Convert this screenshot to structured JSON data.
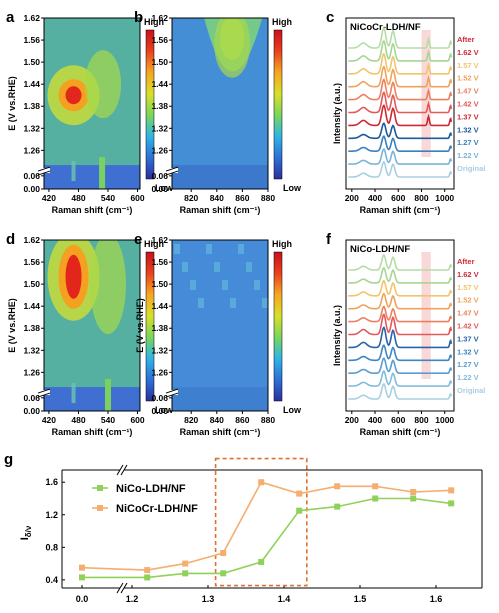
{
  "colorbar": {
    "high": "High",
    "low": "Low",
    "stops": [
      "#2b2f9e",
      "#2f6fd6",
      "#2fb5e8",
      "#7ad65a",
      "#d8e02a",
      "#f5a623",
      "#e8421e",
      "#c8101e"
    ]
  },
  "panels": {
    "a": {
      "letter": "a",
      "ylabel": "E (V vs.RHE)",
      "xlabel": "Raman shift (cm⁻¹)",
      "xticks": [
        "420",
        "480",
        "540",
        "600"
      ],
      "yticks": [
        "1.62",
        "1.56",
        "1.50",
        "1.44",
        "1.38",
        "1.32",
        "1.26",
        "0.06",
        "0.00"
      ]
    },
    "b": {
      "letter": "b",
      "ylabel": "",
      "xlabel": "Raman shift (cm⁻¹)",
      "xticks": [
        "820",
        "840",
        "860",
        "880"
      ],
      "yticks": [
        "1.62",
        "1.56",
        "1.50",
        "1.44",
        "1.38",
        "1.32",
        "1.26",
        "0.06",
        "0.00"
      ]
    },
    "c": {
      "letter": "c",
      "title": "NiCoCr-LDH/NF",
      "ylabel": "Intensity (a.u.)",
      "xlabel": "Raman shift (cm⁻¹)",
      "xticks": [
        "200",
        "400",
        "600",
        "800",
        "1000"
      ],
      "labels": [
        "After",
        "1.62 V",
        "1.57 V",
        "1.52 V",
        "1.47 V",
        "1.42 V",
        "1.37 V",
        "1.32 V",
        "1.27 V",
        "1.22 V",
        "Original"
      ]
    },
    "d": {
      "letter": "d",
      "ylabel": "E (V vs.RHE)",
      "xlabel": "Raman shift (cm⁻¹)",
      "xticks": [
        "420",
        "480",
        "540",
        "600"
      ],
      "yticks": [
        "1.62",
        "1.56",
        "1.50",
        "1.44",
        "1.38",
        "1.32",
        "1.26",
        "0.06",
        "0.00"
      ]
    },
    "e": {
      "letter": "e",
      "ylabel": "E (V vs.RHE)",
      "xlabel": "Raman shift (cm⁻¹)",
      "xticks": [
        "820",
        "840",
        "860",
        "880"
      ],
      "yticks": [
        "1.62",
        "1.56",
        "1.50",
        "1.44",
        "1.38",
        "1.32",
        "1.26",
        "0.06",
        "0.00"
      ]
    },
    "f": {
      "letter": "f",
      "title": "NiCo-LDH/NF",
      "ylabel": "Intensity (a.u.)",
      "xlabel": "Raman shift (cm⁻¹)",
      "xticks": [
        "200",
        "400",
        "600",
        "800",
        "1000"
      ],
      "labels": [
        "After",
        "1.62 V",
        "1.57 V",
        "1.52 V",
        "1.47 V",
        "1.42 V",
        "1.37 V",
        "1.32 V",
        "1.27 V",
        "1.22 V",
        "Original"
      ]
    },
    "g": {
      "letter": "g",
      "ylabel_main": "I",
      "ylabel_sub": "δ/ν",
      "xticks": [
        "0.0",
        "1.2",
        "1.3",
        "1.4",
        "1.5",
        "1.6"
      ],
      "yticks": [
        "0.4",
        "0.8",
        "1.2",
        "1.6"
      ]
    }
  },
  "chart_data": [
    {
      "panel": "a",
      "type": "heatmap",
      "xlabel": "Raman shift (cm⁻¹)",
      "ylabel": "E (V vs.RHE)",
      "xlim": [
        410,
        605
      ],
      "y_values": [
        0.0,
        0.06,
        1.22,
        1.27,
        1.32,
        1.37,
        1.42,
        1.47,
        1.52,
        1.57,
        1.62
      ],
      "hotspots": [
        {
          "x": 470,
          "y": 1.41,
          "level": "high"
        },
        {
          "x": 530,
          "y": 1.44,
          "level": "medium"
        }
      ]
    },
    {
      "panel": "b",
      "type": "heatmap",
      "xlabel": "Raman shift (cm⁻¹)",
      "ylabel": "",
      "xlim": [
        805,
        880
      ],
      "y_values": [
        0.0,
        0.06,
        1.22,
        1.27,
        1.32,
        1.37,
        1.42,
        1.47,
        1.52,
        1.57,
        1.62
      ],
      "hotspots": [
        {
          "x": 852,
          "y": 1.55,
          "level": "medium"
        }
      ]
    },
    {
      "panel": "c",
      "type": "line",
      "title": "NiCoCr-LDH/NF",
      "xlabel": "Raman shift (cm⁻¹)",
      "ylabel": "Intensity (a.u.)",
      "xlim": [
        150,
        1080
      ],
      "series": [
        {
          "name": "After",
          "color": "#b6dca6"
        },
        {
          "name": "1.62 V",
          "color": "#a6d692"
        },
        {
          "name": "1.57 V",
          "color": "#f2c46c"
        },
        {
          "name": "1.52 V",
          "color": "#f0a25a"
        },
        {
          "name": "1.47 V",
          "color": "#ea8060"
        },
        {
          "name": "1.42 V",
          "color": "#e4585a"
        },
        {
          "name": "1.37 V",
          "color": "#cc2a34"
        },
        {
          "name": "1.32 V",
          "color": "#1c5a9c"
        },
        {
          "name": "1.27 V",
          "color": "#3a80c0"
        },
        {
          "name": "1.22 V",
          "color": "#7ab4d8"
        },
        {
          "name": "Original",
          "color": "#a8cfe2"
        }
      ],
      "peaks": [
        475,
        555,
        860,
        1050
      ],
      "highlight_region": [
        800,
        880
      ]
    },
    {
      "panel": "d",
      "type": "heatmap",
      "xlabel": "Raman shift (cm⁻¹)",
      "ylabel": "E (V vs.RHE)",
      "xlim": [
        410,
        605
      ],
      "y_values": [
        0.0,
        0.06,
        1.22,
        1.27,
        1.32,
        1.37,
        1.42,
        1.47,
        1.52,
        1.57,
        1.62
      ],
      "hotspots": [
        {
          "x": 470,
          "y": 1.52,
          "level": "high"
        },
        {
          "x": 540,
          "y": 1.5,
          "level": "medium"
        }
      ]
    },
    {
      "panel": "e",
      "type": "heatmap",
      "xlabel": "Raman shift (cm⁻¹)",
      "ylabel": "E (V vs.RHE)",
      "xlim": [
        805,
        880
      ],
      "y_values": [
        0.0,
        0.06,
        1.22,
        1.27,
        1.32,
        1.37,
        1.42,
        1.47,
        1.52,
        1.57,
        1.62
      ],
      "hotspots": []
    },
    {
      "panel": "f",
      "type": "line",
      "title": "NiCo-LDH/NF",
      "xlabel": "Raman shift (cm⁻¹)",
      "ylabel": "Intensity (a.u.)",
      "xlim": [
        150,
        1080
      ],
      "series": [
        {
          "name": "After",
          "color": "#b6dca6"
        },
        {
          "name": "1.62 V",
          "color": "#a6d692"
        },
        {
          "name": "1.57 V",
          "color": "#f2c46c"
        },
        {
          "name": "1.52 V",
          "color": "#f0a25a"
        },
        {
          "name": "1.47 V",
          "color": "#ea8060"
        },
        {
          "name": "1.42 V",
          "color": "#e4585a"
        },
        {
          "name": "1.37 V",
          "color": "#2a64a8"
        },
        {
          "name": "1.32 V",
          "color": "#3f86c4"
        },
        {
          "name": "1.27 V",
          "color": "#5a9ed0"
        },
        {
          "name": "1.22 V",
          "color": "#82bcdc"
        },
        {
          "name": "Original",
          "color": "#a8cfe2"
        }
      ],
      "peaks": [
        475,
        555,
        1050
      ],
      "highlight_region": [
        800,
        880
      ]
    },
    {
      "panel": "g",
      "type": "line",
      "xlabel": "",
      "ylabel": "Iδ/ν",
      "x": [
        0.0,
        1.22,
        1.27,
        1.32,
        1.37,
        1.42,
        1.47,
        1.52,
        1.57,
        1.62
      ],
      "xlim": [
        -0.1,
        1.68
      ],
      "ylim": [
        0.3,
        1.75
      ],
      "x_axis_break": [
        0.0,
        1.2
      ],
      "highlight_box": {
        "x": [
          1.31,
          1.43
        ],
        "y": [
          0.33,
          1.62
        ]
      },
      "series": [
        {
          "name": "NiCo-LDH/NF",
          "color": "#8fd15a",
          "values": [
            0.43,
            0.43,
            0.48,
            0.48,
            0.62,
            1.25,
            1.3,
            1.4,
            1.4,
            1.34
          ]
        },
        {
          "name": "NiCoCr-LDH/NF",
          "color": "#f5ad70",
          "values": [
            0.55,
            0.52,
            0.6,
            0.73,
            1.6,
            1.46,
            1.55,
            1.55,
            1.48,
            1.5
          ]
        }
      ]
    }
  ]
}
